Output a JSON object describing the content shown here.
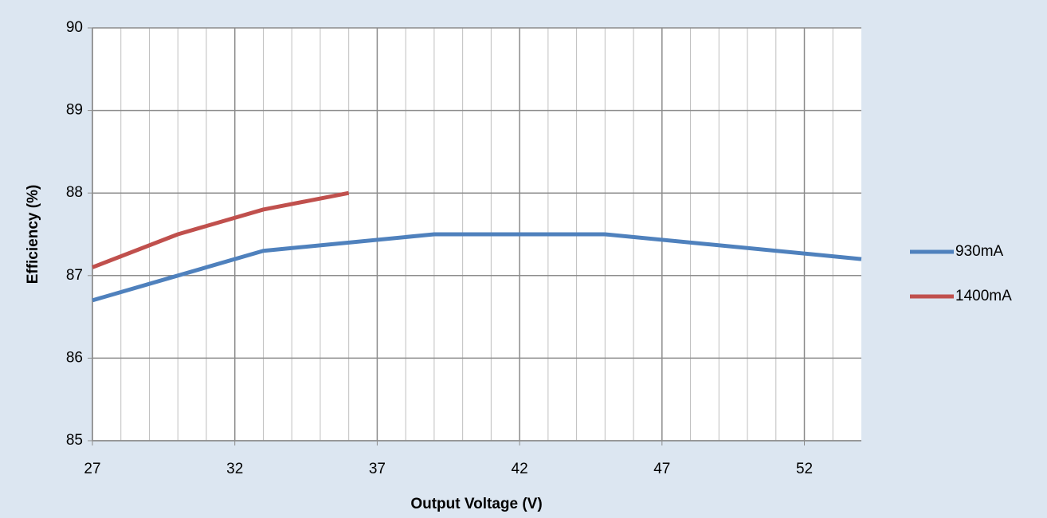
{
  "chart_data": {
    "type": "line",
    "xlabel": "Output Voltage (V)",
    "ylabel": "Efficiency (%)",
    "xlim": [
      27,
      54
    ],
    "xticks": [
      27,
      32,
      37,
      42,
      47,
      52
    ],
    "ylim": [
      85,
      90
    ],
    "yticks": [
      85,
      86,
      87,
      88,
      89,
      90
    ],
    "grid": true,
    "minor_grid_step": 1,
    "legend": "right",
    "series": [
      {
        "name": "930mA",
        "color": "#4f81bd",
        "x": [
          27,
          30,
          33,
          39,
          45,
          54
        ],
        "values": [
          86.7,
          87.0,
          87.3,
          87.5,
          87.5,
          87.2
        ]
      },
      {
        "name": "1400mA",
        "color": "#c0504d",
        "x": [
          27,
          30,
          33,
          36
        ],
        "values": [
          87.1,
          87.5,
          87.8,
          88.0
        ]
      }
    ]
  }
}
